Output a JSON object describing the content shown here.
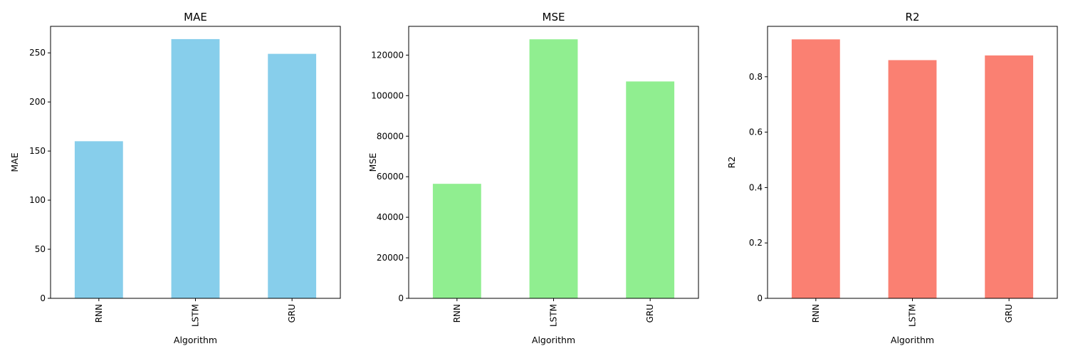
{
  "chart_data": [
    {
      "type": "bar",
      "title": "MAE",
      "xlabel": "Algorithm",
      "ylabel": "MAE",
      "categories": [
        "RNN",
        "LSTM",
        "GRU"
      ],
      "values": [
        160,
        264,
        249
      ],
      "ylim": [
        0,
        277
      ],
      "yticks": [
        0,
        50,
        100,
        150,
        200,
        250
      ],
      "color": "#87ceeb",
      "grid": false,
      "legend": "none"
    },
    {
      "type": "bar",
      "title": "MSE",
      "xlabel": "Algorithm",
      "ylabel": "MSE",
      "categories": [
        "RNN",
        "LSTM",
        "GRU"
      ],
      "values": [
        56500,
        127800,
        107000
      ],
      "ylim": [
        0,
        134190
      ],
      "yticks": [
        0,
        20000,
        40000,
        60000,
        80000,
        100000,
        120000
      ],
      "color": "#90ee90",
      "grid": false,
      "legend": "none"
    },
    {
      "type": "bar",
      "title": "R2",
      "xlabel": "Algorithm",
      "ylabel": "R2",
      "categories": [
        "RNN",
        "LSTM",
        "GRU"
      ],
      "values": [
        0.935,
        0.86,
        0.877
      ],
      "ylim": [
        0,
        0.982
      ],
      "yticks": [
        0.0,
        0.2,
        0.4,
        0.6,
        0.8
      ],
      "color": "#fa8072",
      "grid": false,
      "legend": "none"
    }
  ]
}
